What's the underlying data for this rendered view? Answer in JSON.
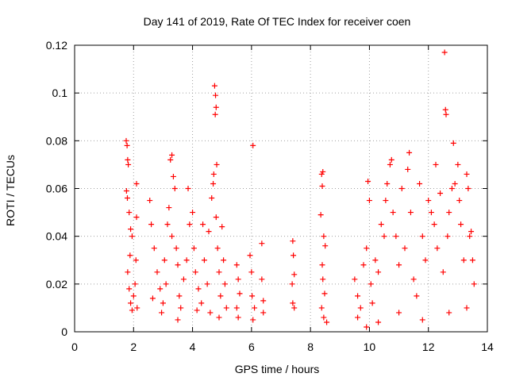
{
  "chart_data": {
    "type": "scatter",
    "title": "Day 141 of 2019, Rate Of TEC Index for receiver coen",
    "xlabel": "GPS time / hours",
    "ylabel": "ROTI / TECUs",
    "xlim": [
      0,
      14
    ],
    "ylim": [
      0,
      0.12
    ],
    "x_ticks": [
      0,
      2,
      4,
      6,
      8,
      10,
      12,
      14
    ],
    "x_tick_labels": [
      "0",
      "2",
      "4",
      "6",
      "8",
      "10",
      "12",
      "14"
    ],
    "y_ticks": [
      0,
      0.02,
      0.04,
      0.06,
      0.08,
      0.1,
      0.12
    ],
    "y_tick_labels": [
      "0",
      "0.02",
      "0.04",
      "0.06",
      "0.08",
      "0.1",
      "0.12"
    ],
    "grid": true,
    "marker": "+",
    "series": [
      {
        "name": "ROTI",
        "color": "#ff0000",
        "points": [
          [
            1.75,
            0.08
          ],
          [
            1.78,
            0.078
          ],
          [
            1.8,
            0.072
          ],
          [
            1.82,
            0.07
          ],
          [
            1.76,
            0.059
          ],
          [
            1.79,
            0.056
          ],
          [
            1.85,
            0.05
          ],
          [
            1.9,
            0.043
          ],
          [
            1.95,
            0.04
          ],
          [
            1.88,
            0.032
          ],
          [
            1.8,
            0.025
          ],
          [
            1.85,
            0.018
          ],
          [
            1.9,
            0.012
          ],
          [
            1.95,
            0.009
          ],
          [
            2.0,
            0.015
          ],
          [
            2.05,
            0.02
          ],
          [
            2.1,
            0.048
          ],
          [
            2.1,
            0.062
          ],
          [
            2.08,
            0.03
          ],
          [
            2.12,
            0.01
          ],
          [
            2.55,
            0.055
          ],
          [
            2.6,
            0.045
          ],
          [
            2.7,
            0.035
          ],
          [
            2.8,
            0.025
          ],
          [
            2.9,
            0.018
          ],
          [
            3.0,
            0.012
          ],
          [
            2.95,
            0.008
          ],
          [
            3.05,
            0.03
          ],
          [
            3.1,
            0.02
          ],
          [
            3.15,
            0.045
          ],
          [
            3.2,
            0.052
          ],
          [
            3.25,
            0.072
          ],
          [
            3.3,
            0.074
          ],
          [
            3.35,
            0.065
          ],
          [
            3.4,
            0.06
          ],
          [
            3.3,
            0.04
          ],
          [
            3.45,
            0.035
          ],
          [
            3.5,
            0.028
          ],
          [
            3.55,
            0.015
          ],
          [
            3.6,
            0.01
          ],
          [
            3.7,
            0.022
          ],
          [
            3.8,
            0.03
          ],
          [
            3.85,
            0.06
          ],
          [
            3.9,
            0.045
          ],
          [
            4.0,
            0.05
          ],
          [
            4.05,
            0.035
          ],
          [
            4.1,
            0.025
          ],
          [
            4.2,
            0.018
          ],
          [
            4.3,
            0.012
          ],
          [
            4.35,
            0.045
          ],
          [
            4.4,
            0.03
          ],
          [
            4.5,
            0.02
          ],
          [
            4.55,
            0.042
          ],
          [
            4.6,
            0.008
          ],
          [
            4.65,
            0.056
          ],
          [
            4.7,
            0.062
          ],
          [
            4.72,
            0.066
          ],
          [
            4.75,
            0.103
          ],
          [
            4.78,
            0.099
          ],
          [
            4.8,
            0.094
          ],
          [
            4.77,
            0.091
          ],
          [
            4.82,
            0.07
          ],
          [
            4.8,
            0.048
          ],
          [
            4.85,
            0.035
          ],
          [
            4.9,
            0.025
          ],
          [
            4.95,
            0.015
          ],
          [
            5.0,
            0.044
          ],
          [
            5.05,
            0.03
          ],
          [
            5.1,
            0.02
          ],
          [
            5.15,
            0.01
          ],
          [
            2.65,
            0.014
          ],
          [
            3.5,
            0.005
          ],
          [
            4.15,
            0.009
          ],
          [
            4.9,
            0.006
          ],
          [
            5.5,
            0.028
          ],
          [
            5.55,
            0.022
          ],
          [
            5.6,
            0.016
          ],
          [
            5.5,
            0.01
          ],
          [
            5.55,
            0.006
          ],
          [
            5.95,
            0.032
          ],
          [
            6.0,
            0.025
          ],
          [
            6.05,
            0.078
          ],
          [
            6.02,
            0.015
          ],
          [
            6.1,
            0.01
          ],
          [
            6.05,
            0.005
          ],
          [
            6.35,
            0.037
          ],
          [
            6.35,
            0.022
          ],
          [
            6.4,
            0.013
          ],
          [
            6.4,
            0.008
          ],
          [
            7.4,
            0.038
          ],
          [
            7.42,
            0.032
          ],
          [
            7.45,
            0.024
          ],
          [
            7.38,
            0.02
          ],
          [
            7.4,
            0.012
          ],
          [
            7.45,
            0.01
          ],
          [
            8.38,
            0.066
          ],
          [
            8.42,
            0.067
          ],
          [
            8.4,
            0.061
          ],
          [
            8.35,
            0.049
          ],
          [
            8.45,
            0.04
          ],
          [
            8.5,
            0.036
          ],
          [
            8.4,
            0.028
          ],
          [
            8.42,
            0.022
          ],
          [
            8.48,
            0.016
          ],
          [
            8.38,
            0.01
          ],
          [
            8.45,
            0.006
          ],
          [
            8.55,
            0.004
          ],
          [
            9.5,
            0.022
          ],
          [
            9.6,
            0.015
          ],
          [
            9.7,
            0.01
          ],
          [
            9.8,
            0.028
          ],
          [
            9.9,
            0.035
          ],
          [
            9.95,
            0.063
          ],
          [
            10.0,
            0.055
          ],
          [
            10.05,
            0.02
          ],
          [
            10.1,
            0.012
          ],
          [
            10.2,
            0.03
          ],
          [
            10.3,
            0.025
          ],
          [
            10.4,
            0.045
          ],
          [
            10.5,
            0.04
          ],
          [
            10.55,
            0.055
          ],
          [
            10.6,
            0.062
          ],
          [
            10.7,
            0.07
          ],
          [
            10.75,
            0.072
          ],
          [
            10.8,
            0.05
          ],
          [
            10.9,
            0.04
          ],
          [
            11.0,
            0.028
          ],
          [
            11.1,
            0.06
          ],
          [
            11.2,
            0.035
          ],
          [
            11.3,
            0.068
          ],
          [
            11.35,
            0.075
          ],
          [
            11.4,
            0.05
          ],
          [
            11.5,
            0.022
          ],
          [
            11.6,
            0.015
          ],
          [
            11.7,
            0.062
          ],
          [
            11.8,
            0.04
          ],
          [
            11.9,
            0.03
          ],
          [
            12.0,
            0.055
          ],
          [
            12.1,
            0.05
          ],
          [
            12.2,
            0.045
          ],
          [
            12.25,
            0.07
          ],
          [
            12.3,
            0.035
          ],
          [
            12.4,
            0.058
          ],
          [
            12.5,
            0.025
          ],
          [
            12.55,
            0.117
          ],
          [
            12.58,
            0.093
          ],
          [
            12.6,
            0.091
          ],
          [
            12.65,
            0.04
          ],
          [
            12.7,
            0.05
          ],
          [
            12.8,
            0.06
          ],
          [
            12.85,
            0.079
          ],
          [
            12.9,
            0.062
          ],
          [
            13.0,
            0.07
          ],
          [
            13.05,
            0.055
          ],
          [
            13.1,
            0.045
          ],
          [
            13.2,
            0.03
          ],
          [
            13.3,
            0.066
          ],
          [
            13.35,
            0.06
          ],
          [
            13.4,
            0.04
          ],
          [
            13.45,
            0.042
          ],
          [
            13.5,
            0.03
          ],
          [
            13.55,
            0.02
          ],
          [
            9.6,
            0.006
          ],
          [
            10.3,
            0.004
          ],
          [
            11.0,
            0.008
          ],
          [
            11.8,
            0.005
          ],
          [
            12.7,
            0.008
          ],
          [
            13.3,
            0.01
          ],
          [
            9.9,
            0.002
          ]
        ]
      }
    ]
  }
}
